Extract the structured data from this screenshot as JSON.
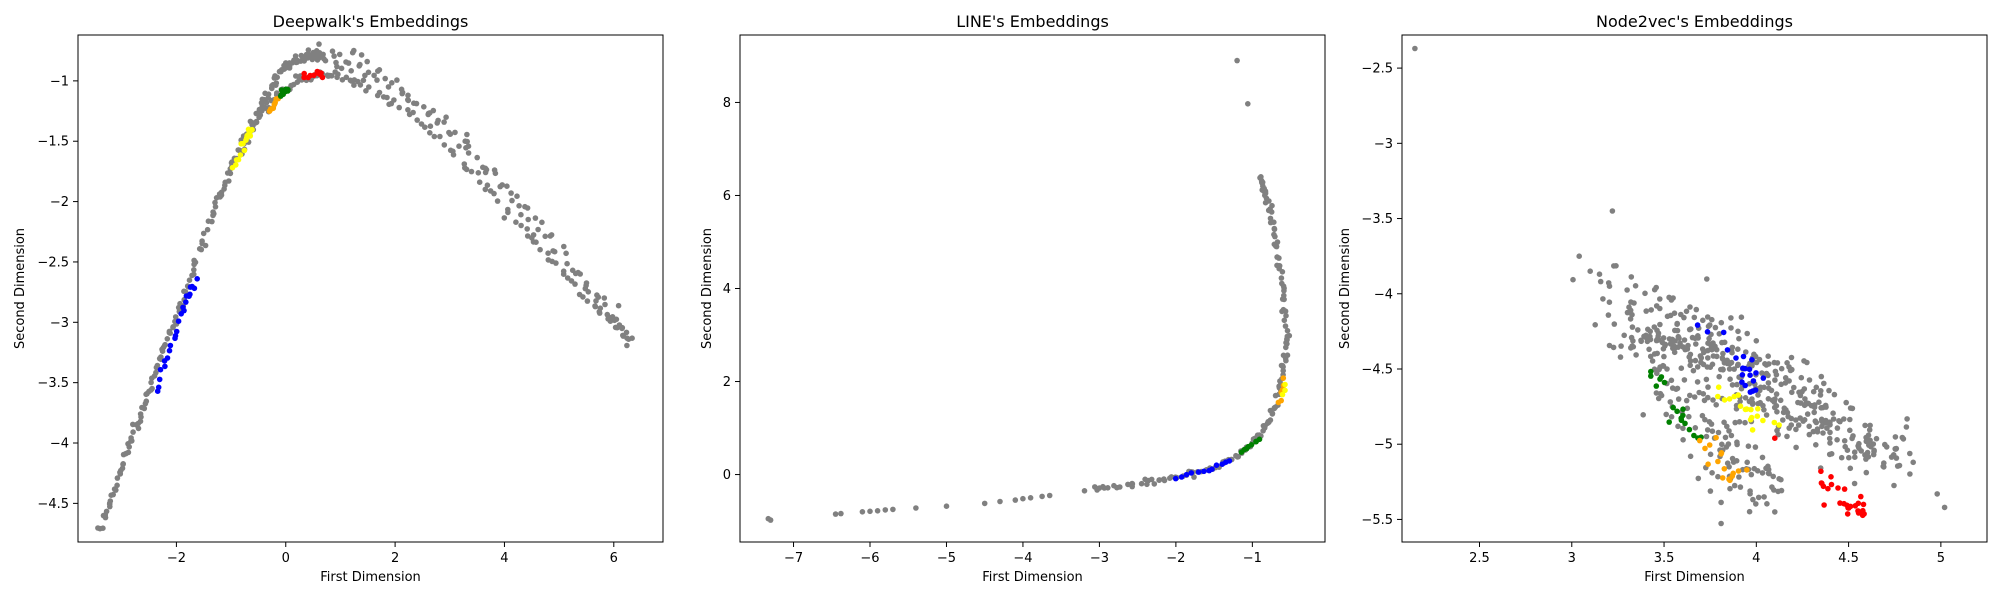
{
  "chart_data": [
    {
      "type": "scatter",
      "title": "Deepwalk's Embeddings",
      "xlabel": "First Dimension",
      "ylabel": "Second Dimension",
      "xlim": [
        -3.8,
        6.9
      ],
      "ylim": [
        -4.82,
        -0.62
      ],
      "xticks": [
        -2,
        0,
        2,
        4,
        6
      ],
      "yticks": [
        -4.5,
        -4.0,
        -3.5,
        -3.0,
        -2.5,
        -2.0,
        -1.5,
        -1.0
      ],
      "grid": false,
      "curves": [
        {
          "color": "#808080",
          "count": 200,
          "jitter": [
            0.02,
            0.02
          ],
          "points": [
            [
              -3.38,
              -4.72
            ],
            [
              -3.0,
              -4.2
            ],
            [
              -2.6,
              -3.7
            ],
            [
              -2.2,
              -3.2
            ],
            [
              -1.8,
              -2.7
            ],
            [
              -1.3,
              -2.05
            ],
            [
              -0.9,
              -1.6
            ],
            [
              -0.4,
              -1.15
            ],
            [
              0.0,
              -0.88
            ],
            [
              0.4,
              -0.8
            ],
            [
              0.7,
              -0.8
            ]
          ]
        },
        {
          "color": "#808080",
          "count": 140,
          "jitter": [
            0.02,
            0.02
          ],
          "points": [
            [
              -0.9,
              -1.65
            ],
            [
              -0.5,
              -1.3
            ],
            [
              -0.1,
              -1.1
            ],
            [
              0.3,
              -0.97
            ],
            [
              0.8,
              -0.95
            ],
            [
              1.5,
              -1.05
            ],
            [
              2.5,
              -1.35
            ],
            [
              3.5,
              -1.8
            ],
            [
              4.5,
              -2.3
            ],
            [
              5.5,
              -2.8
            ],
            [
              6.3,
              -3.15
            ]
          ]
        },
        {
          "color": "#808080",
          "count": 110,
          "jitter": [
            0.05,
            0.05
          ],
          "points": [
            [
              0.7,
              -0.8
            ],
            [
              1.5,
              -0.9
            ],
            [
              2.5,
              -1.2
            ],
            [
              3.5,
              -1.6
            ],
            [
              4.5,
              -2.15
            ],
            [
              5.5,
              -2.7
            ],
            [
              6.35,
              -3.17
            ]
          ]
        },
        {
          "color": "#0000ff",
          "count": 24,
          "jitter": [
            0.02,
            0.02
          ],
          "points": [
            [
              -2.35,
              -3.57
            ],
            [
              -2.1,
              -3.2
            ],
            [
              -1.85,
              -2.85
            ],
            [
              -1.65,
              -2.65
            ]
          ]
        },
        {
          "color": "#ffff00",
          "count": 16,
          "jitter": [
            0.02,
            0.02
          ],
          "points": [
            [
              -0.95,
              -1.72
            ],
            [
              -0.75,
              -1.5
            ],
            [
              -0.6,
              -1.38
            ]
          ]
        },
        {
          "color": "#ffa500",
          "count": 8,
          "jitter": [
            0.01,
            0.01
          ],
          "points": [
            [
              -0.3,
              -1.25
            ],
            [
              -0.15,
              -1.15
            ]
          ]
        },
        {
          "color": "#008000",
          "count": 8,
          "jitter": [
            0.01,
            0.01
          ],
          "points": [
            [
              -0.1,
              -1.12
            ],
            [
              0.05,
              -1.07
            ]
          ]
        },
        {
          "color": "#ff0000",
          "count": 12,
          "jitter": [
            0.02,
            0.01
          ],
          "points": [
            [
              0.35,
              -0.97
            ],
            [
              0.55,
              -0.93
            ],
            [
              0.7,
              -0.95
            ]
          ]
        }
      ],
      "points": []
    },
    {
      "type": "scatter",
      "title": "LINE's Embeddings",
      "xlabel": "First Dimension",
      "ylabel": "Second Dimension",
      "xlim": [
        -7.7,
        -0.05
      ],
      "ylim": [
        -1.45,
        9.45
      ],
      "xticks": [
        -7,
        -6,
        -5,
        -4,
        -3,
        -2,
        -1
      ],
      "yticks": [
        0,
        2,
        4,
        6,
        8
      ],
      "grid": false,
      "curves": [
        {
          "color": "#808080",
          "count": 160,
          "jitter": [
            0.015,
            0.03
          ],
          "points": [
            [
              -3.15,
              -0.33
            ],
            [
              -2.5,
              -0.2
            ],
            [
              -2.0,
              -0.05
            ],
            [
              -1.5,
              0.15
            ],
            [
              -1.15,
              0.45
            ],
            [
              -0.9,
              0.85
            ],
            [
              -0.7,
              1.4
            ],
            [
              -0.6,
              2.2
            ],
            [
              -0.55,
              3.0
            ],
            [
              -0.6,
              4.0
            ],
            [
              -0.7,
              5.0
            ],
            [
              -0.8,
              5.9
            ],
            [
              -0.9,
              6.4
            ]
          ]
        },
        {
          "color": "#0000ff",
          "count": 12,
          "jitter": [
            0.01,
            0.02
          ],
          "points": [
            [
              -2.0,
              -0.05
            ],
            [
              -1.6,
              0.1
            ],
            [
              -1.3,
              0.3
            ]
          ]
        },
        {
          "color": "#008000",
          "count": 8,
          "jitter": [
            0.01,
            0.02
          ],
          "points": [
            [
              -1.15,
              0.45
            ],
            [
              -0.9,
              0.8
            ]
          ]
        },
        {
          "color": "#ffa500",
          "count": 6,
          "jitter": [
            0.01,
            0.03
          ],
          "points": [
            [
              -0.65,
              1.55
            ],
            [
              -0.58,
              2.05
            ]
          ]
        },
        {
          "color": "#ffff00",
          "count": 3,
          "jitter": [
            0.01,
            0.02
          ],
          "points": [
            [
              -0.6,
              1.75
            ],
            [
              -0.57,
              1.95
            ]
          ]
        }
      ],
      "points": [
        {
          "x": -7.33,
          "y": -0.95,
          "color": "#808080"
        },
        {
          "x": -7.3,
          "y": -0.98,
          "color": "#808080"
        },
        {
          "x": -6.45,
          "y": -0.85,
          "color": "#808080"
        },
        {
          "x": -6.38,
          "y": -0.84,
          "color": "#808080"
        },
        {
          "x": -6.1,
          "y": -0.8,
          "color": "#808080"
        },
        {
          "x": -6.0,
          "y": -0.79,
          "color": "#808080"
        },
        {
          "x": -5.9,
          "y": -0.78,
          "color": "#808080"
        },
        {
          "x": -5.8,
          "y": -0.76,
          "color": "#808080"
        },
        {
          "x": -5.7,
          "y": -0.75,
          "color": "#808080"
        },
        {
          "x": -5.4,
          "y": -0.72,
          "color": "#808080"
        },
        {
          "x": -5.0,
          "y": -0.68,
          "color": "#808080"
        },
        {
          "x": -4.5,
          "y": -0.62,
          "color": "#808080"
        },
        {
          "x": -4.3,
          "y": -0.58,
          "color": "#808080"
        },
        {
          "x": -4.1,
          "y": -0.55,
          "color": "#808080"
        },
        {
          "x": -4.0,
          "y": -0.52,
          "color": "#808080"
        },
        {
          "x": -3.9,
          "y": -0.5,
          "color": "#808080"
        },
        {
          "x": -3.75,
          "y": -0.47,
          "color": "#808080"
        },
        {
          "x": -3.65,
          "y": -0.45,
          "color": "#808080"
        },
        {
          "x": -1.2,
          "y": 8.9,
          "color": "#808080"
        },
        {
          "x": -1.06,
          "y": 7.97,
          "color": "#808080"
        }
      ]
    },
    {
      "type": "scatter",
      "title": "Node2vec's Embeddings",
      "xlabel": "First Dimension",
      "ylabel": "Second Dimension",
      "xlim": [
        2.08,
        5.25
      ],
      "ylim": [
        -5.65,
        -2.28
      ],
      "xticks": [
        2.5,
        3.0,
        3.5,
        4.0,
        4.5,
        5.0
      ],
      "yticks": [
        -5.5,
        -5.0,
        -4.5,
        -4.0,
        -3.5,
        -3.0,
        -2.5
      ],
      "grid": false,
      "curves": [
        {
          "color": "#808080",
          "count": 260,
          "jitter": [
            0.1,
            0.11
          ],
          "points": [
            [
              3.4,
              -4.2
            ],
            [
              3.6,
              -4.35
            ],
            [
              3.8,
              -4.5
            ],
            [
              4.0,
              -4.65
            ],
            [
              4.2,
              -4.78
            ],
            [
              4.4,
              -4.9
            ],
            [
              4.6,
              -5.0
            ],
            [
              4.75,
              -5.1
            ]
          ]
        },
        {
          "color": "#808080",
          "count": 160,
          "jitter": [
            0.09,
            0.09
          ],
          "points": [
            [
              3.2,
              -3.92
            ],
            [
              3.4,
              -4.3
            ],
            [
              3.6,
              -4.65
            ],
            [
              3.75,
              -4.95
            ],
            [
              3.9,
              -5.2
            ],
            [
              4.05,
              -5.35
            ]
          ]
        },
        {
          "color": "#808080",
          "count": 110,
          "jitter": [
            0.08,
            0.08
          ],
          "points": [
            [
              3.55,
              -4.1
            ],
            [
              3.75,
              -4.25
            ],
            [
              3.95,
              -4.4
            ],
            [
              4.15,
              -4.55
            ],
            [
              4.4,
              -4.7
            ]
          ]
        },
        {
          "color": "#0000ff",
          "count": 16,
          "jitter": [
            0.03,
            0.04
          ],
          "points": [
            [
              3.93,
              -4.45
            ],
            [
              3.96,
              -4.55
            ],
            [
              3.98,
              -4.65
            ]
          ]
        },
        {
          "color": "#0000ff",
          "count": 4,
          "jitter": [
            0.02,
            0.02
          ],
          "points": [
            [
              3.68,
              -4.22
            ],
            [
              3.85,
              -4.35
            ]
          ]
        },
        {
          "color": "#ffff00",
          "count": 18,
          "jitter": [
            0.04,
            0.03
          ],
          "points": [
            [
              3.78,
              -4.65
            ],
            [
              3.9,
              -4.72
            ],
            [
              4.02,
              -4.8
            ],
            [
              4.1,
              -4.88
            ]
          ]
        },
        {
          "color": "#008000",
          "count": 6,
          "jitter": [
            0.02,
            0.01
          ],
          "points": [
            [
              3.43,
              -4.52
            ],
            [
              3.5,
              -4.6
            ]
          ]
        },
        {
          "color": "#008000",
          "count": 12,
          "jitter": [
            0.03,
            0.03
          ],
          "points": [
            [
              3.55,
              -4.75
            ],
            [
              3.62,
              -4.85
            ],
            [
              3.68,
              -4.95
            ]
          ]
        },
        {
          "color": "#ffa500",
          "count": 16,
          "jitter": [
            0.03,
            0.04
          ],
          "points": [
            [
              3.7,
              -4.98
            ],
            [
              3.78,
              -5.1
            ],
            [
              3.85,
              -5.2
            ],
            [
              3.88,
              -5.28
            ]
          ]
        },
        {
          "color": "#ff0000",
          "count": 26,
          "jitter": [
            0.04,
            0.04
          ],
          "points": [
            [
              4.35,
              -5.25
            ],
            [
              4.45,
              -5.33
            ],
            [
              4.52,
              -5.42
            ],
            [
              4.57,
              -5.48
            ]
          ]
        }
      ],
      "points": [
        {
          "x": 2.15,
          "y": -2.37,
          "color": "#808080"
        },
        {
          "x": 3.22,
          "y": -3.45,
          "color": "#808080"
        },
        {
          "x": 3.04,
          "y": -3.75,
          "color": "#808080"
        },
        {
          "x": 3.1,
          "y": -3.85,
          "color": "#808080"
        },
        {
          "x": 3.15,
          "y": -3.87,
          "color": "#808080"
        },
        {
          "x": 4.85,
          "y": -5.12,
          "color": "#808080"
        },
        {
          "x": 4.98,
          "y": -5.33,
          "color": "#808080"
        },
        {
          "x": 5.02,
          "y": -5.42,
          "color": "#808080"
        },
        {
          "x": 4.1,
          "y": -5.45,
          "color": "#808080"
        },
        {
          "x": 4.35,
          "y": -5.18,
          "color": "#ff0000"
        },
        {
          "x": 4.1,
          "y": -4.96,
          "color": "#ff0000"
        }
      ]
    }
  ]
}
